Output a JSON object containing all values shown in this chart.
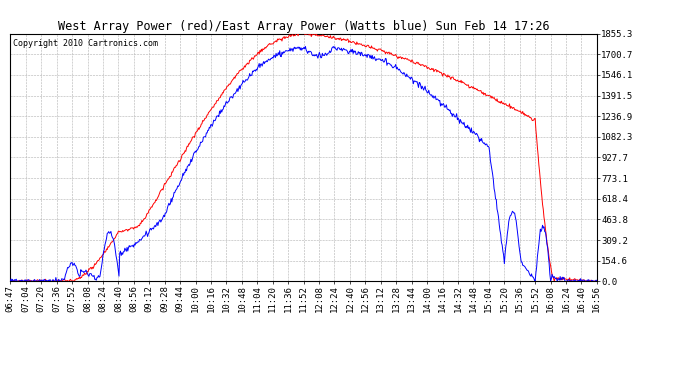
{
  "title": "West Array Power (red)/East Array Power (Watts blue) Sun Feb 14 17:26",
  "copyright": "Copyright 2010 Cartronics.com",
  "background_color": "#ffffff",
  "plot_bg_color": "#ffffff",
  "grid_color": "#b0b0b0",
  "yticks": [
    0.0,
    154.6,
    309.2,
    463.8,
    618.4,
    773.1,
    927.7,
    1082.3,
    1236.9,
    1391.5,
    1546.1,
    1700.7,
    1855.3
  ],
  "ymax": 1855.3,
  "ymin": 0.0,
  "x_labels": [
    "06:47",
    "07:04",
    "07:20",
    "07:36",
    "07:52",
    "08:08",
    "08:24",
    "08:40",
    "08:56",
    "09:12",
    "09:28",
    "09:44",
    "10:00",
    "10:16",
    "10:32",
    "10:48",
    "11:04",
    "11:20",
    "11:36",
    "11:52",
    "12:08",
    "12:24",
    "12:40",
    "12:56",
    "13:12",
    "13:28",
    "13:44",
    "14:00",
    "14:16",
    "14:32",
    "14:48",
    "15:04",
    "15:20",
    "15:36",
    "15:52",
    "16:08",
    "16:24",
    "16:40",
    "16:56"
  ],
  "red_color": "#ff0000",
  "blue_color": "#0000ff",
  "title_fontsize": 8.5,
  "copyright_fontsize": 6,
  "tick_fontsize": 6.5
}
